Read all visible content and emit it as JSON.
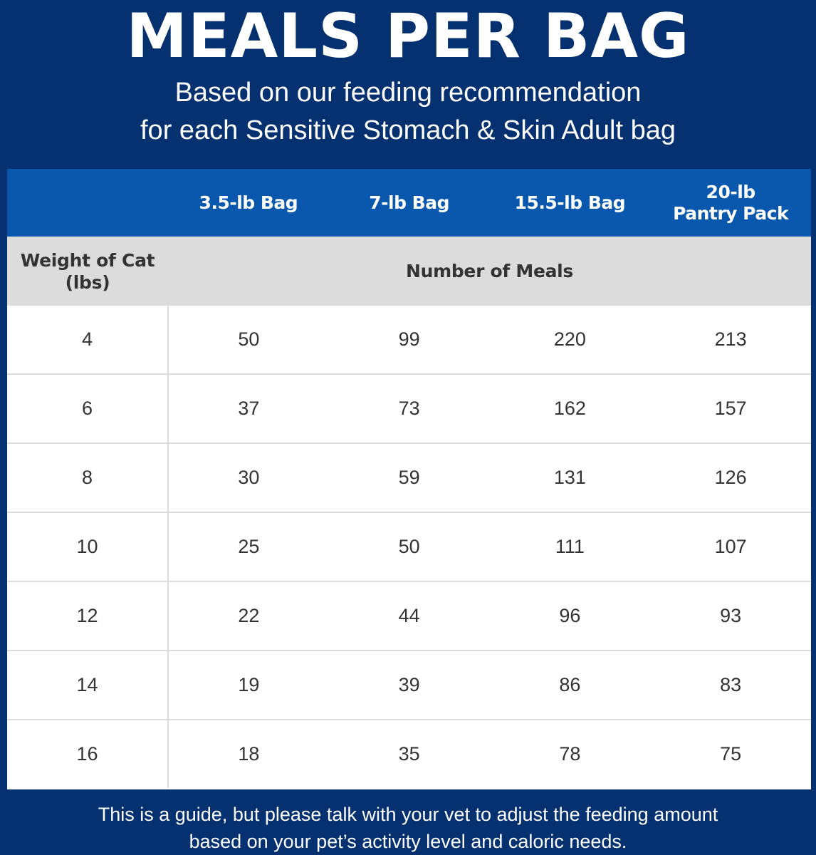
{
  "header": {
    "title": "MEALS PER BAG",
    "subtitle_line1": "Based on our feeding recommendation",
    "subtitle_line2": "for each Sensitive Stomach & Skin Adult bag"
  },
  "table": {
    "bag_columns": [
      {
        "line1": "3.5-lb Bag",
        "line2": ""
      },
      {
        "line1": "7-lb Bag",
        "line2": ""
      },
      {
        "line1": "15.5-lb Bag",
        "line2": ""
      },
      {
        "line1": "20-lb",
        "line2": "Pantry Pack"
      }
    ],
    "weight_header_line1": "Weight of Cat",
    "weight_header_line2": "(lbs)",
    "meals_header": "Number of Meals",
    "rows": [
      {
        "weight": "4",
        "values": [
          "50",
          "99",
          "220",
          "213"
        ]
      },
      {
        "weight": "6",
        "values": [
          "37",
          "73",
          "162",
          "157"
        ]
      },
      {
        "weight": "8",
        "values": [
          "30",
          "59",
          "131",
          "126"
        ]
      },
      {
        "weight": "10",
        "values": [
          "25",
          "50",
          "111",
          "107"
        ]
      },
      {
        "weight": "12",
        "values": [
          "22",
          "44",
          "96",
          "93"
        ]
      },
      {
        "weight": "14",
        "values": [
          "19",
          "39",
          "86",
          "83"
        ]
      },
      {
        "weight": "16",
        "values": [
          "18",
          "35",
          "78",
          "75"
        ]
      }
    ]
  },
  "footer": {
    "line1": "This is a guide, but please talk with your vet to adjust the feeding amount",
    "line2": "based on your pet’s activity level and caloric needs."
  },
  "colors": {
    "background": "#053170",
    "header_row": "#0a58ad",
    "label_row": "#dcdcdc",
    "text_dark": "#333333"
  }
}
